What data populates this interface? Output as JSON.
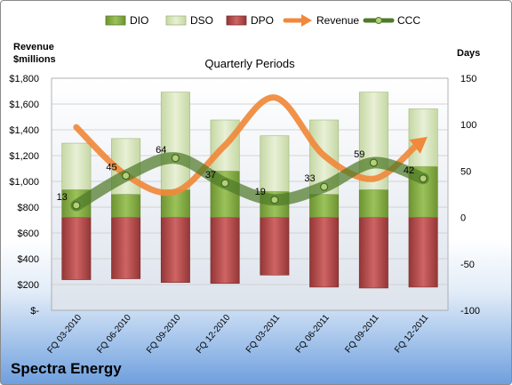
{
  "company": "Spectra Energy",
  "chart_data": {
    "type": "bar",
    "title": "Quarterly Periods",
    "left_axis_label": [
      "Revenue",
      "$millions"
    ],
    "right_axis_label": "Days",
    "categories": [
      "FQ 03-2010",
      "FQ 06-2010",
      "FQ 09-2010",
      "FQ 12-2010",
      "FQ 03-2011",
      "FQ 06-2011",
      "FQ 09-2011",
      "FQ 12-2011"
    ],
    "left_ylim": [
      0,
      1800
    ],
    "left_ticks": [
      "$-",
      "$200",
      "$400",
      "$600",
      "$800",
      "$1,000",
      "$1,200",
      "$1,400",
      "$1,600",
      "$1,800"
    ],
    "right_ylim": [
      -100,
      150
    ],
    "right_ticks": [
      "-100",
      "-50",
      "0",
      "50",
      "100",
      "150"
    ],
    "grid": true,
    "legend_position": "top",
    "series": [
      {
        "name": "DIO",
        "axis": "right",
        "kind": "stacked-bar-positive",
        "color": "#8ab04a",
        "values": [
          30,
          25,
          30,
          50,
          28,
          25,
          30,
          55
        ]
      },
      {
        "name": "DSO",
        "axis": "right",
        "kind": "stacked-bar-positive",
        "color": "#d7e4bd",
        "values": [
          50,
          60,
          105,
          55,
          60,
          80,
          105,
          62
        ]
      },
      {
        "name": "DPO",
        "axis": "right",
        "kind": "bar-negative",
        "color": "#b74949",
        "values": [
          67,
          66,
          70,
          71,
          62,
          75,
          76,
          75
        ]
      },
      {
        "name": "Revenue",
        "axis": "left",
        "kind": "arrow-line",
        "color": "#f0893b",
        "values": [
          1420,
          1050,
          920,
          1280,
          1650,
          1200,
          1020,
          1320
        ]
      },
      {
        "name": "CCC",
        "axis": "right",
        "kind": "line-markers",
        "color": "#4f7a28",
        "values": [
          13,
          45,
          64,
          37,
          19,
          33,
          59,
          42
        ]
      }
    ],
    "data_labels": [
      "13",
      "45",
      "64",
      "37",
      "19",
      "33",
      "59",
      "42"
    ]
  }
}
